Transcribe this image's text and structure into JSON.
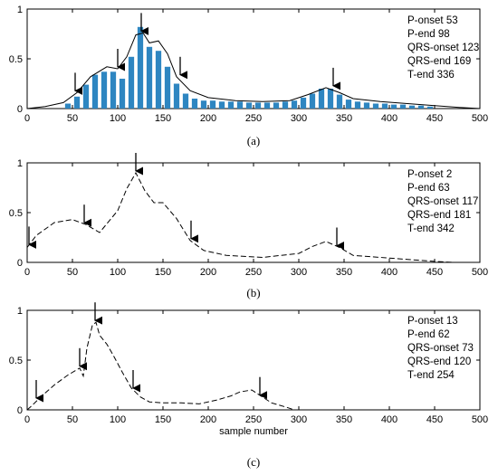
{
  "chart_data": [
    {
      "type": "bar",
      "caption": "(a)",
      "xlim": [
        0,
        500
      ],
      "ylim": [
        0,
        1
      ],
      "xticks": [
        "0",
        "50",
        "100",
        "150",
        "200",
        "250",
        "300",
        "350",
        "400",
        "450",
        "500"
      ],
      "yticks": [
        "0",
        "0.5",
        "1"
      ],
      "xlabel": "",
      "annotations": [
        "P-onset 53",
        "P-end 98",
        "QRS-onset 123",
        "QRS-end 169",
        "T-end 336"
      ],
      "bar_color": "#2e86c1",
      "bars": {
        "x": [
          45,
          55,
          65,
          75,
          85,
          95,
          105,
          115,
          125,
          135,
          145,
          155,
          165,
          175,
          185,
          195,
          205,
          215,
          225,
          235,
          245,
          255,
          265,
          275,
          285,
          295,
          305,
          315,
          325,
          335,
          345,
          355,
          365,
          375,
          385,
          395,
          405,
          415,
          425,
          435,
          445
        ],
        "values": [
          0.05,
          0.12,
          0.24,
          0.34,
          0.37,
          0.37,
          0.3,
          0.52,
          0.82,
          0.62,
          0.58,
          0.42,
          0.25,
          0.15,
          0.1,
          0.08,
          0.08,
          0.07,
          0.07,
          0.07,
          0.06,
          0.06,
          0.06,
          0.06,
          0.07,
          0.08,
          0.11,
          0.15,
          0.2,
          0.2,
          0.14,
          0.09,
          0.07,
          0.06,
          0.05,
          0.05,
          0.04,
          0.04,
          0.03,
          0.03,
          0.02
        ]
      },
      "curve": {
        "style": "solid",
        "x": [
          0,
          20,
          40,
          55,
          70,
          88,
          100,
          110,
          120,
          128,
          135,
          145,
          155,
          165,
          180,
          200,
          230,
          260,
          290,
          310,
          330,
          345,
          360,
          390,
          420,
          450,
          480,
          500
        ],
        "y": [
          0,
          0.02,
          0.06,
          0.16,
          0.32,
          0.42,
          0.4,
          0.52,
          0.74,
          0.76,
          0.66,
          0.68,
          0.55,
          0.32,
          0.18,
          0.11,
          0.08,
          0.07,
          0.08,
          0.14,
          0.21,
          0.16,
          0.1,
          0.07,
          0.05,
          0.03,
          0.01,
          0
        ]
      },
      "markers": {
        "x": [
          53,
          100,
          126,
          169,
          338
        ],
        "y": [
          0.16,
          0.4,
          0.76,
          0.32,
          0.21
        ]
      }
    },
    {
      "type": "line",
      "caption": "(b)",
      "xlim": [
        0,
        500
      ],
      "ylim": [
        0,
        1
      ],
      "xticks": [
        "0",
        "50",
        "100",
        "150",
        "200",
        "250",
        "300",
        "350",
        "400",
        "450",
        "500"
      ],
      "yticks": [
        "0",
        "0.5",
        "1"
      ],
      "xlabel": "",
      "annotations": [
        "P-onset 2",
        "P-end 63",
        "QRS-onset 117",
        "QRS-end 181",
        "T-end 342"
      ],
      "curve": {
        "style": "dashed",
        "x": [
          0,
          10,
          30,
          50,
          65,
          80,
          100,
          110,
          120,
          130,
          140,
          150,
          165,
          180,
          195,
          220,
          260,
          300,
          315,
          330,
          345,
          360,
          390,
          420,
          450,
          470,
          480
        ],
        "y": [
          0.15,
          0.27,
          0.4,
          0.43,
          0.38,
          0.3,
          0.52,
          0.74,
          0.9,
          0.72,
          0.6,
          0.6,
          0.44,
          0.22,
          0.12,
          0.07,
          0.05,
          0.09,
          0.16,
          0.21,
          0.15,
          0.07,
          0.05,
          0.03,
          0.01,
          0,
          0
        ]
      },
      "markers": {
        "x": [
          2,
          63,
          120,
          181,
          342
        ],
        "y": [
          0.16,
          0.38,
          0.9,
          0.22,
          0.15
        ]
      }
    },
    {
      "type": "line",
      "caption": "(c)",
      "xlim": [
        0,
        500
      ],
      "ylim": [
        0,
        1
      ],
      "xticks": [
        "0",
        "50",
        "100",
        "150",
        "200",
        "250",
        "300",
        "350",
        "400",
        "450",
        "500"
      ],
      "yticks": [
        "0",
        "0.5",
        "1"
      ],
      "xlabel": "sample number",
      "annotations": [
        "P-onset 13",
        "P-end 62",
        "QRS-onset 73",
        "QRS-end 120",
        "T-end 254"
      ],
      "curve": {
        "style": "dashed",
        "x": [
          0,
          5,
          15,
          30,
          45,
          58,
          62,
          66,
          72,
          76,
          80,
          88,
          95,
          105,
          115,
          125,
          135,
          150,
          170,
          190,
          210,
          225,
          235,
          248,
          258,
          270,
          285,
          295
        ],
        "y": [
          0,
          0.04,
          0.13,
          0.25,
          0.35,
          0.42,
          0.34,
          0.62,
          0.85,
          0.88,
          0.75,
          0.66,
          0.55,
          0.38,
          0.22,
          0.13,
          0.08,
          0.07,
          0.07,
          0.06,
          0.1,
          0.14,
          0.18,
          0.2,
          0.14,
          0.07,
          0.03,
          0
        ]
      },
      "markers": {
        "x": [
          10,
          58,
          75,
          117,
          257
        ],
        "y": [
          0.1,
          0.42,
          0.88,
          0.2,
          0.13
        ]
      }
    }
  ]
}
